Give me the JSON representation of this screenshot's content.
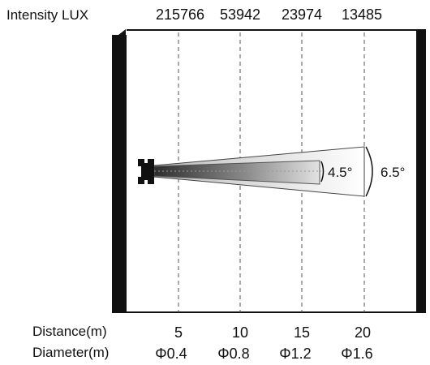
{
  "header": {
    "intensity_label": "Intensity LUX",
    "intensity_values": [
      "215766",
      "53942",
      "23974",
      "13485"
    ]
  },
  "footer": {
    "distance_label": "Distance(m)",
    "distance_values": [
      "5",
      "10",
      "15",
      "20"
    ],
    "diameter_label": "Diameter(m)",
    "diameter_values": [
      "Φ0.4",
      "Φ0.8",
      "Φ1.2",
      "Φ1.6"
    ]
  },
  "beam": {
    "inner_angle": "4.5°",
    "outer_angle": "6.5°"
  },
  "colors": {
    "frame": "#111111",
    "guide": "#555555",
    "beam_dark": "#3a3a3a",
    "beam_light": "#f4f4f4",
    "background": "#ffffff"
  }
}
